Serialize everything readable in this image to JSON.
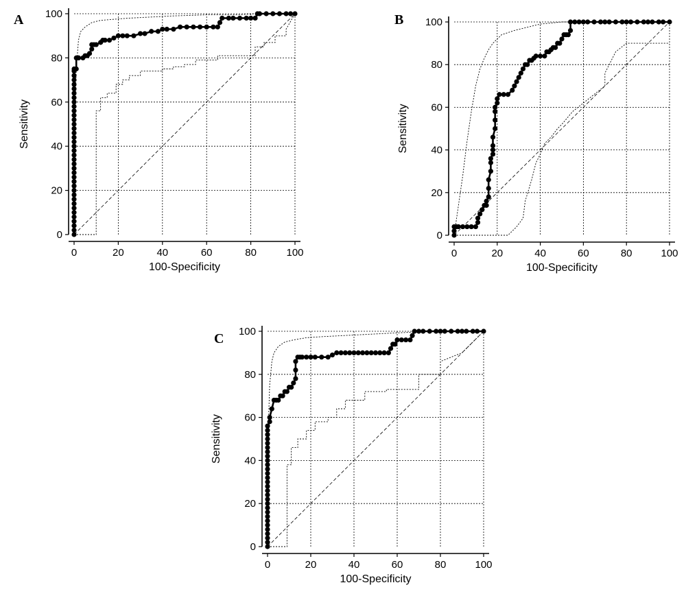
{
  "figure": {
    "panels": [
      "A",
      "B",
      "C"
    ]
  },
  "chart_data": [
    {
      "type": "line",
      "panel_label": "A",
      "xlabel": "100-Specificity",
      "ylabel": "Sensitivity",
      "xlim": [
        0,
        100
      ],
      "ylim": [
        0,
        100
      ],
      "xticks": [
        "0",
        "20",
        "40",
        "60",
        "80",
        "100"
      ],
      "yticks": [
        "0",
        "20",
        "40",
        "60",
        "80",
        "100"
      ],
      "grid": true,
      "diagonal_reference": true,
      "roc": {
        "x": [
          0,
          0,
          0,
          0,
          0,
          0,
          0,
          0,
          0,
          0,
          0,
          0,
          0,
          0,
          0,
          0,
          0,
          0,
          0,
          0,
          0,
          0,
          0,
          0,
          0,
          0,
          0,
          0,
          0,
          0,
          0,
          0,
          0,
          0,
          0,
          0,
          0,
          0,
          0,
          1,
          1,
          2,
          2,
          4,
          5,
          6,
          7,
          8,
          8,
          9,
          10,
          12,
          13,
          14,
          16,
          18,
          20,
          22,
          24,
          27,
          30,
          32,
          35,
          38,
          40,
          42,
          45,
          48,
          51,
          54,
          57,
          60,
          63,
          65,
          66,
          67,
          70,
          72,
          75,
          78,
          80,
          82,
          83,
          84,
          87,
          90,
          93,
          96,
          98,
          100
        ],
        "y": [
          0,
          2,
          4,
          6,
          8,
          10,
          12,
          14,
          16,
          18,
          20,
          22,
          24,
          26,
          28,
          30,
          32,
          34,
          36,
          38,
          40,
          42,
          44,
          46,
          48,
          50,
          52,
          54,
          56,
          58,
          60,
          62,
          64,
          66,
          68,
          70,
          72,
          74,
          75,
          75,
          80,
          80,
          80,
          80,
          81,
          81,
          82,
          84,
          86,
          86,
          86,
          87,
          88,
          88,
          88,
          89,
          90,
          90,
          90,
          90,
          91,
          91,
          92,
          92,
          93,
          93,
          93,
          94,
          94,
          94,
          94,
          94,
          94,
          94,
          96,
          98,
          98,
          98,
          98,
          98,
          98,
          98,
          100,
          100,
          100,
          100,
          100,
          100,
          100,
          100
        ]
      },
      "ci_upper": {
        "x": [
          0,
          0.5,
          1,
          2,
          3,
          5,
          8,
          12,
          18,
          25,
          35,
          45,
          60,
          75,
          82,
          90,
          100
        ],
        "y": [
          0,
          60,
          75,
          88,
          92,
          94,
          96,
          97,
          97.5,
          98,
          98.5,
          99,
          99.5,
          99.5,
          100,
          100,
          100
        ]
      },
      "ci_lower": {
        "x": [
          0,
          10,
          10,
          12,
          12,
          15,
          15,
          19,
          19,
          22,
          22,
          25,
          25,
          30,
          30,
          40,
          40,
          45,
          45,
          50,
          50,
          55,
          55,
          65,
          65,
          82,
          82,
          86,
          86,
          91,
          91,
          96,
          96,
          100
        ],
        "y": [
          0,
          0,
          56,
          56,
          62,
          62,
          64,
          64,
          68,
          68,
          70,
          70,
          72,
          72,
          74,
          74,
          75,
          75,
          76,
          76,
          77,
          77,
          79,
          79,
          81,
          81,
          85,
          85,
          87,
          87,
          90,
          90,
          93,
          100
        ]
      }
    },
    {
      "type": "line",
      "panel_label": "B",
      "xlabel": "100-Specificity",
      "ylabel": "Sensitivity",
      "xlim": [
        0,
        100
      ],
      "ylim": [
        0,
        100
      ],
      "xticks": [
        "0",
        "20",
        "40",
        "60",
        "80",
        "100"
      ],
      "yticks": [
        "0",
        "20",
        "40",
        "60",
        "80",
        "100"
      ],
      "grid": true,
      "diagonal_reference": true,
      "roc": {
        "x": [
          0,
          0,
          0,
          1,
          2,
          4,
          6,
          8,
          10,
          11,
          11,
          12,
          13,
          14,
          15,
          15,
          16,
          16,
          16,
          17,
          17,
          17,
          18,
          18,
          18,
          18,
          19,
          19,
          19,
          19,
          20,
          20,
          21,
          23,
          25,
          27,
          28,
          29,
          30,
          31,
          32,
          33,
          34,
          35,
          36,
          37,
          38,
          40,
          42,
          43,
          44,
          45,
          46,
          47,
          48,
          49,
          50,
          51,
          52,
          53,
          54,
          54,
          56,
          58,
          60,
          62,
          65,
          68,
          70,
          72,
          75,
          78,
          80,
          82,
          85,
          88,
          90,
          92,
          95,
          97,
          100
        ],
        "y": [
          0,
          2,
          4,
          4,
          4,
          4,
          4,
          4,
          4,
          6,
          8,
          10,
          12,
          14,
          14,
          16,
          18,
          22,
          26,
          30,
          34,
          36,
          38,
          40,
          42,
          46,
          50,
          54,
          58,
          60,
          62,
          64,
          66,
          66,
          66,
          68,
          70,
          72,
          74,
          76,
          78,
          80,
          80,
          82,
          82,
          83,
          84,
          84,
          84,
          86,
          86,
          87,
          88,
          88,
          90,
          90,
          92,
          94,
          94,
          94,
          96,
          100,
          100,
          100,
          100,
          100,
          100,
          100,
          100,
          100,
          100,
          100,
          100,
          100,
          100,
          100,
          100,
          100,
          100,
          100,
          100
        ]
      },
      "ci_upper": {
        "x": [
          0,
          2,
          4,
          6,
          8,
          10,
          12,
          14,
          16,
          18,
          20,
          22,
          25,
          28,
          32,
          36,
          40,
          45,
          50,
          55,
          60,
          80,
          100
        ],
        "y": [
          0,
          14,
          28,
          44,
          58,
          70,
          78,
          83,
          87,
          90,
          92,
          94,
          95,
          96,
          97,
          98,
          99,
          99.5,
          100,
          100,
          100,
          100,
          100
        ]
      },
      "ci_lower": {
        "x": [
          0,
          25,
          29,
          32,
          33,
          36,
          38,
          40,
          42,
          45,
          48,
          50,
          55,
          60,
          65,
          70,
          70,
          72,
          75,
          80,
          82,
          100
        ],
        "y": [
          0,
          0,
          4,
          8,
          16,
          26,
          34,
          38,
          43,
          46,
          50,
          52,
          58,
          62,
          66,
          70,
          76,
          80,
          86,
          90,
          90,
          90
        ]
      }
    },
    {
      "type": "line",
      "panel_label": "C",
      "xlabel": "100-Specificity",
      "ylabel": "Sensitivity",
      "xlim": [
        0,
        100
      ],
      "ylim": [
        0,
        100
      ],
      "xticks": [
        "0",
        "20",
        "40",
        "60",
        "80",
        "100"
      ],
      "yticks": [
        "0",
        "20",
        "40",
        "60",
        "80",
        "100"
      ],
      "grid": true,
      "diagonal_reference": true,
      "roc": {
        "x": [
          0,
          0,
          0,
          0,
          0,
          0,
          0,
          0,
          0,
          0,
          0,
          0,
          0,
          0,
          0,
          0,
          0,
          0,
          0,
          0,
          0,
          0,
          0,
          0,
          0,
          0,
          0,
          0,
          0,
          1,
          1,
          2,
          3,
          4,
          5,
          6,
          7,
          8,
          9,
          10,
          11,
          12,
          13,
          13,
          13,
          14,
          15,
          16,
          18,
          20,
          22,
          25,
          28,
          30,
          32,
          34,
          36,
          38,
          40,
          42,
          44,
          46,
          48,
          50,
          52,
          54,
          56,
          57,
          58,
          59,
          60,
          62,
          64,
          66,
          67,
          68,
          70,
          72,
          75,
          78,
          80,
          82,
          85,
          88,
          90,
          92,
          95,
          97,
          100
        ],
        "y": [
          0,
          2,
          4,
          6,
          8,
          10,
          12,
          14,
          16,
          18,
          20,
          22,
          24,
          26,
          28,
          30,
          32,
          34,
          36,
          38,
          40,
          42,
          44,
          46,
          48,
          50,
          52,
          54,
          56,
          58,
          60,
          64,
          68,
          68,
          68,
          70,
          70,
          72,
          72,
          74,
          74,
          76,
          78,
          82,
          86,
          88,
          88,
          88,
          88,
          88,
          88,
          88,
          88,
          89,
          90,
          90,
          90,
          90,
          90,
          90,
          90,
          90,
          90,
          90,
          90,
          90,
          90,
          92,
          94,
          94,
          96,
          96,
          96,
          96,
          98,
          100,
          100,
          100,
          100,
          100,
          100,
          100,
          100,
          100,
          100,
          100,
          100,
          100,
          100
        ]
      },
      "ci_upper": {
        "x": [
          0,
          0.5,
          1,
          2,
          3,
          5,
          8,
          12,
          18,
          25,
          35,
          45,
          55,
          65,
          75,
          85,
          100
        ],
        "y": [
          0,
          60,
          75,
          86,
          90,
          93,
          95,
          96,
          97,
          97.5,
          98,
          98.5,
          99,
          99.5,
          100,
          100,
          100
        ]
      },
      "ci_lower": {
        "x": [
          0,
          9,
          9,
          11,
          11,
          14,
          14,
          18,
          18,
          22,
          22,
          28,
          28,
          32,
          32,
          36,
          36,
          45,
          45,
          55,
          55,
          70,
          70,
          80,
          80,
          90,
          100
        ],
        "y": [
          0,
          0,
          38,
          38,
          46,
          46,
          50,
          50,
          54,
          54,
          58,
          58,
          60,
          60,
          64,
          64,
          68,
          68,
          72,
          72,
          73,
          73,
          80,
          80,
          86,
          90,
          100
        ]
      }
    }
  ]
}
